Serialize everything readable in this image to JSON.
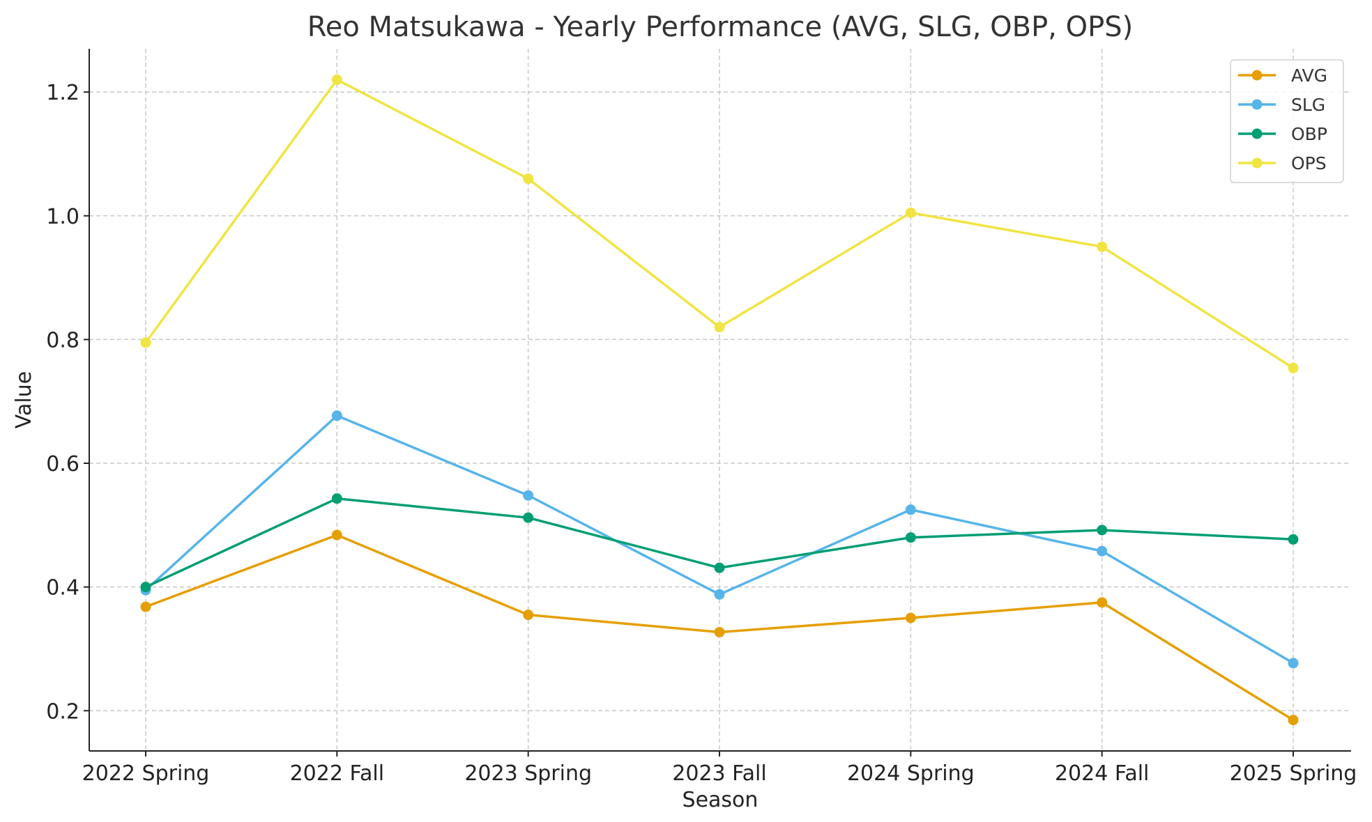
{
  "chart_data": {
    "type": "line",
    "title": "Reo Matsukawa - Yearly Performance (AVG, SLG, OBP, OPS)",
    "xlabel": "Season",
    "ylabel": "Value",
    "categories": [
      "2022 Spring",
      "2022 Fall",
      "2023 Spring",
      "2023 Fall",
      "2024 Spring",
      "2024 Fall",
      "2025 Spring"
    ],
    "ylim": [
      0.135,
      1.27
    ],
    "yticks": [
      0.2,
      0.4,
      0.6,
      0.8,
      1.0,
      1.2
    ],
    "ytick_labels": [
      "0.2",
      "0.4",
      "0.6",
      "0.8",
      "1.0",
      "1.2"
    ],
    "grid": true,
    "legend_position": "top-right",
    "series": [
      {
        "name": "AVG",
        "color": "#E69F00",
        "values": [
          0.368,
          0.484,
          0.355,
          0.327,
          0.35,
          0.375,
          0.185
        ]
      },
      {
        "name": "SLG",
        "color": "#56B4E9",
        "values": [
          0.395,
          0.677,
          0.548,
          0.388,
          0.525,
          0.458,
          0.277
        ]
      },
      {
        "name": "OBP",
        "color": "#009E73",
        "values": [
          0.4,
          0.543,
          0.512,
          0.431,
          0.48,
          0.492,
          0.477
        ]
      },
      {
        "name": "OPS",
        "color": "#F0E442",
        "values": [
          0.795,
          1.22,
          1.06,
          0.82,
          1.005,
          0.95,
          0.754
        ]
      }
    ]
  }
}
